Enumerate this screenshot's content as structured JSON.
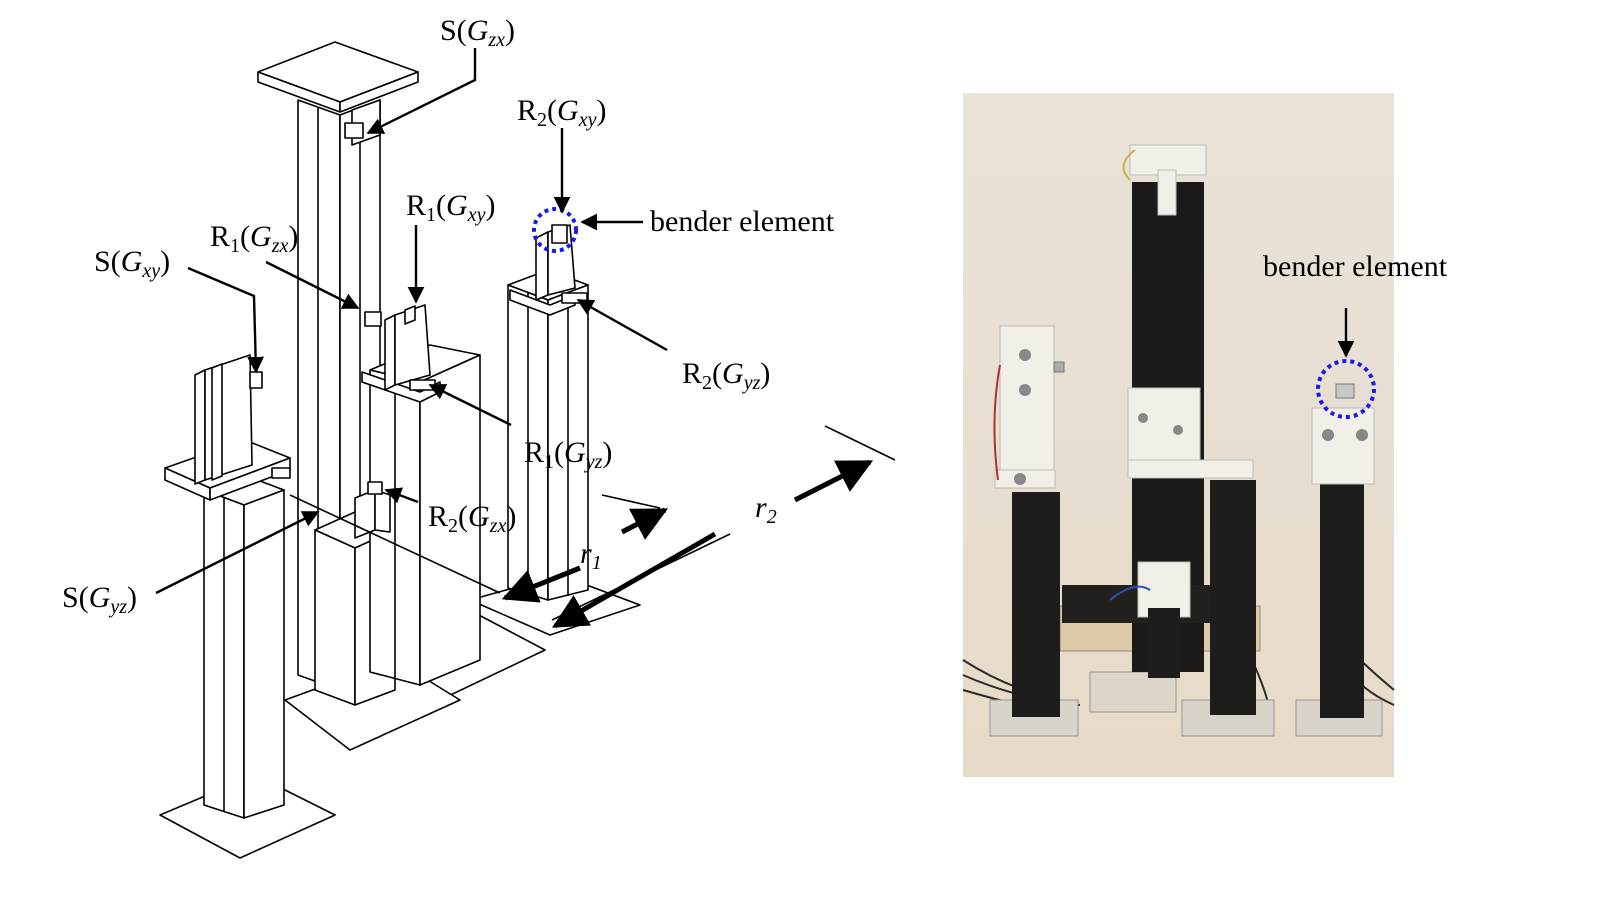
{
  "labels": {
    "s_zx": {
      "main": "S(",
      "sym": "G",
      "sub": "zx",
      "close": ")"
    },
    "r2_xy": {
      "main": "R",
      "num": "2",
      "open": "(",
      "sym": "G",
      "sub": "xy",
      "close": ")"
    },
    "r1_xy": {
      "main": "R",
      "num": "1",
      "open": "(",
      "sym": "G",
      "sub": "xy",
      "close": ")"
    },
    "r1_zx": {
      "main": "R",
      "num": "1",
      "open": "(",
      "sym": "G",
      "sub": "zx",
      "close": ")"
    },
    "s_xy": {
      "main": "S(",
      "sym": "G",
      "sub": "xy",
      "close": ")"
    },
    "r2_yz": {
      "main": "R",
      "num": "2",
      "open": "(",
      "sym": "G",
      "sub": "yz",
      "close": ")"
    },
    "r1_yz": {
      "main": "R",
      "num": "1",
      "open": "(",
      "sym": "G",
      "sub": "yz",
      "close": ")"
    },
    "r2_zx": {
      "main": "R",
      "num": "2",
      "open": "(",
      "sym": "G",
      "sub": "zx",
      "close": ")"
    },
    "s_yz": {
      "main": "S(",
      "sym": "G",
      "sub": "yz",
      "close": ")"
    },
    "bender_left": "bender element",
    "bender_right": "bender element",
    "r1": {
      "sym": "r",
      "sub": "1"
    },
    "r2": {
      "sym": "r",
      "sub": "2"
    }
  },
  "colors": {
    "highlight_circle": "#1a1ae6",
    "photo_background": "#e6ddd0",
    "photo_table": "#eadfcf",
    "column_dark": "#1c1a18",
    "fixture_white": "#f2efe8"
  }
}
